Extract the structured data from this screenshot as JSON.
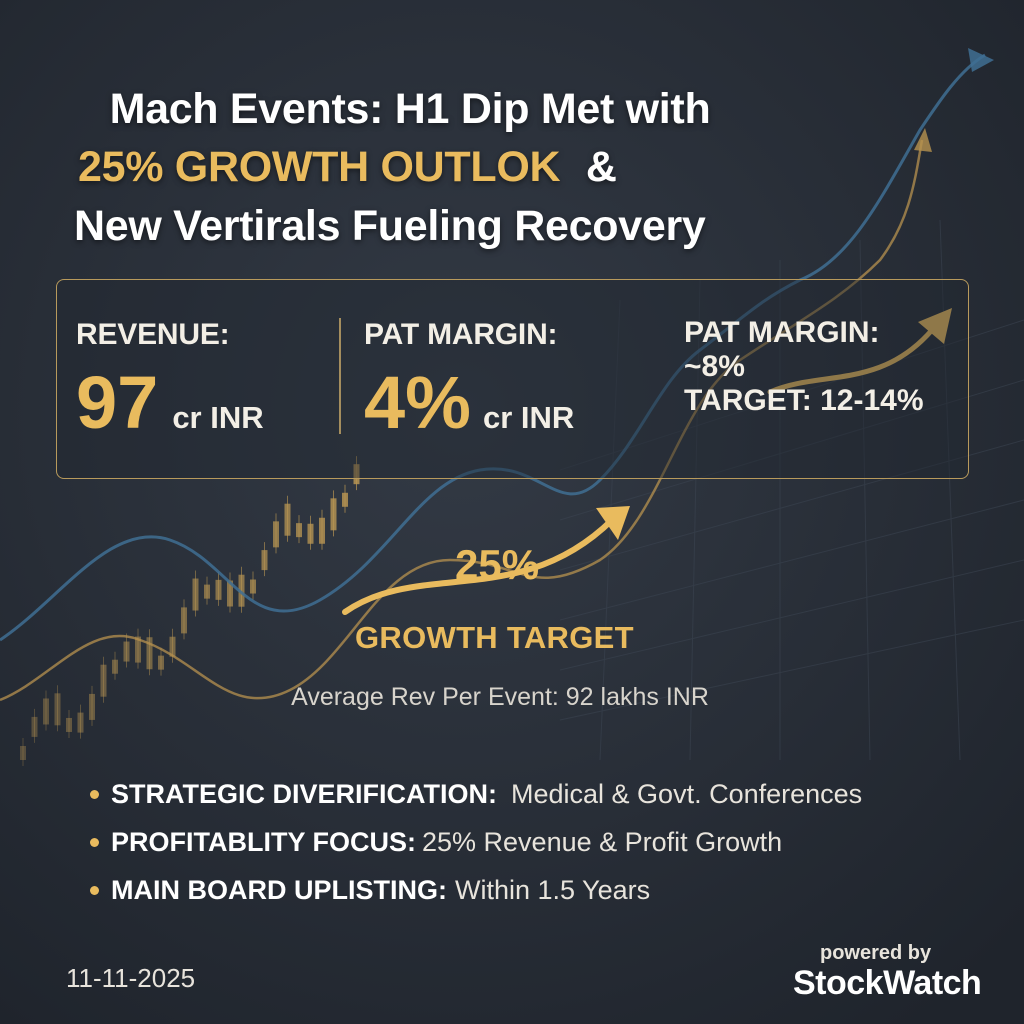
{
  "headline": {
    "line1": "Mach Events: H1 Dip Met with",
    "line2_highlight": "25% GROWTH OUTLOK",
    "line2_tail": "&",
    "line3": "New Vertirals Fueling Recovery"
  },
  "stats": {
    "revenue": {
      "label": "REVENUE:",
      "value": "97",
      "unit": "cr INR"
    },
    "pat_margin": {
      "label": "PAT MARGIN:",
      "value": "4%",
      "unit": "cr INR"
    },
    "pat_margin_target": {
      "label": "PAT MARGIN:",
      "current": "~8%",
      "target": "TARGET: 12-14%"
    }
  },
  "growth": {
    "percent": "25%",
    "label": "GROWTH TARGET"
  },
  "average_rev": "Average Rev Per Event: 92 lakhs INR",
  "bullets": [
    {
      "head": "STRATEGIC DIVERIFICATION:",
      "text": "Medical & Govt. Conferences"
    },
    {
      "head": "PROFITABLITY FOCUS:",
      "text": "25% Revenue & Profit Growth"
    },
    {
      "head": "MAIN BOARD UPLISTING:",
      "text": "Within 1.5 Years"
    }
  ],
  "date": "11-11-2025",
  "footer": {
    "powered": "powered by",
    "brand": "StockWatch"
  },
  "colors": {
    "background": "#272d36",
    "accent_gold": "#e9bb5e",
    "accent_blue": "#4a7fa6"
  }
}
